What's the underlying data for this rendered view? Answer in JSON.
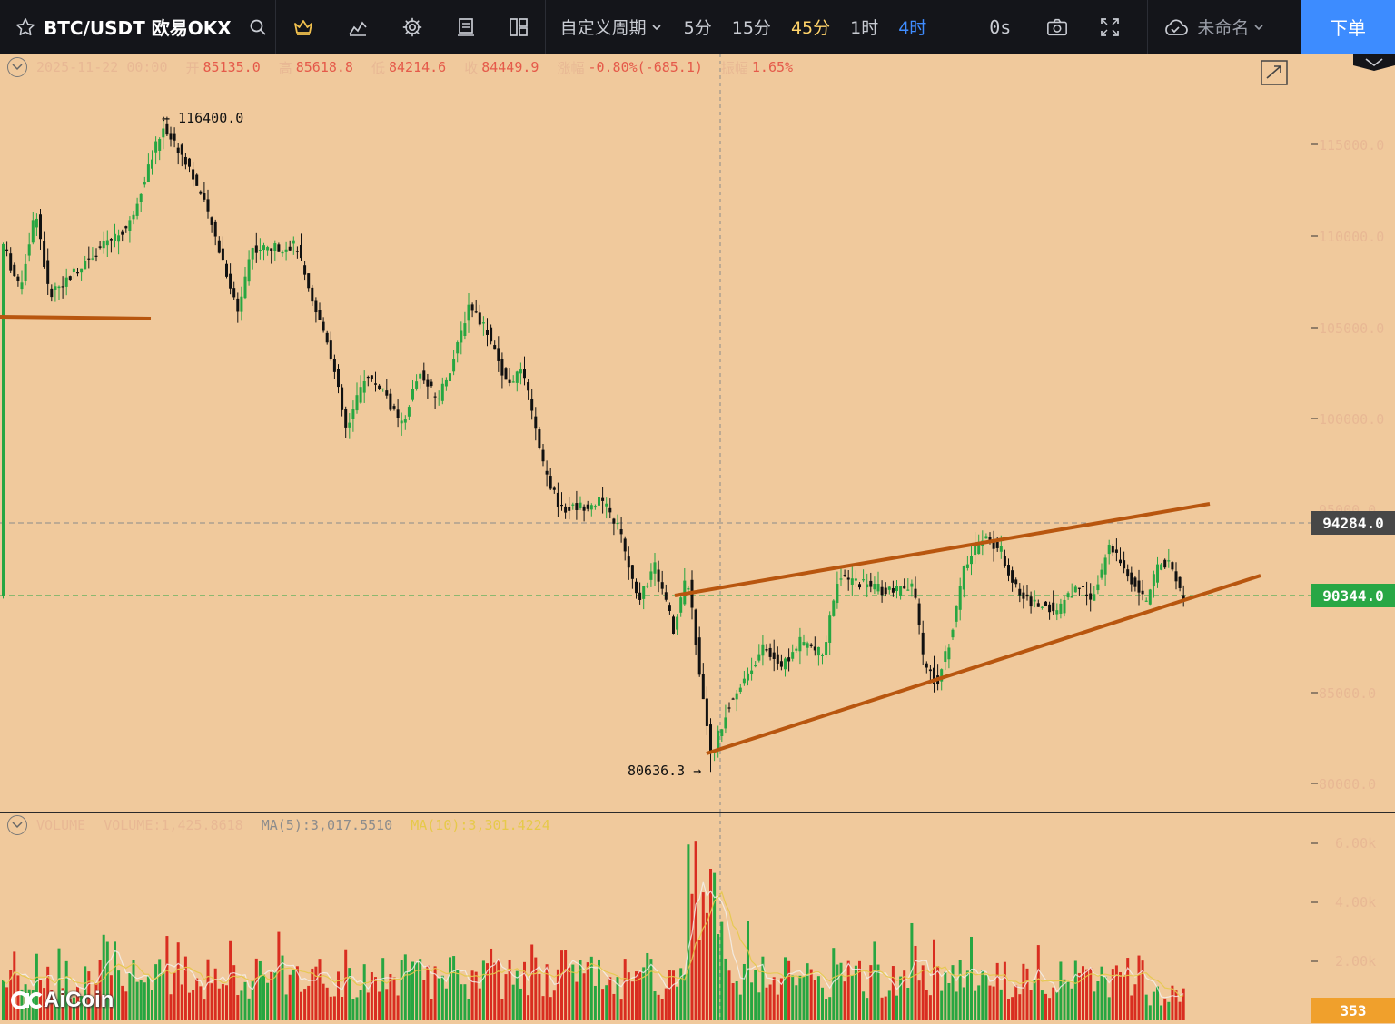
{
  "toolbar": {
    "symbol": "BTC/USDT 欧易OKX",
    "custom_period": "自定义周期",
    "periods": [
      "5分",
      "15分",
      "45分",
      "1时",
      "4时"
    ],
    "countdown": "0s",
    "layout_name": "未命名",
    "order_label": "下单"
  },
  "ohlc": {
    "date": "2025-11-22 00:00",
    "open_label": "开",
    "open": "85135.0",
    "high_label": "高",
    "high": "85618.8",
    "low_label": "低",
    "low": "84214.6",
    "close_label": "收",
    "close": "84449.9",
    "change_label": "涨幅",
    "change": "-0.80%(-685.1)",
    "amplitude_label": "振幅",
    "amplitude": "1.65%"
  },
  "volume_info": {
    "title": "VOLUME",
    "volume": "VOLUME:1,425.8618",
    "ma5": "MA(5):3,017.5510",
    "ma10": "MA(10):3,301.4224"
  },
  "price_axis": [
    "115000.0",
    "110000.0",
    "105000.0",
    "100000.0",
    "95000.0",
    "85000.0",
    "80000.0"
  ],
  "volume_axis": [
    "6.00k",
    "4.00k",
    "2.00k"
  ],
  "price_tags": {
    "resistance": "94284.0",
    "last": "90344.0",
    "volume_last": "353"
  },
  "markers": {
    "high": "← 116400.0",
    "low": "80636.3 →"
  },
  "brand": "AiCoin",
  "colors": {
    "background": "#f0c99c",
    "up": "#27a641",
    "down": "#d92d20",
    "trendline": "#b8560f",
    "last_price": "#28a745",
    "order_button": "#3d8cff"
  }
}
